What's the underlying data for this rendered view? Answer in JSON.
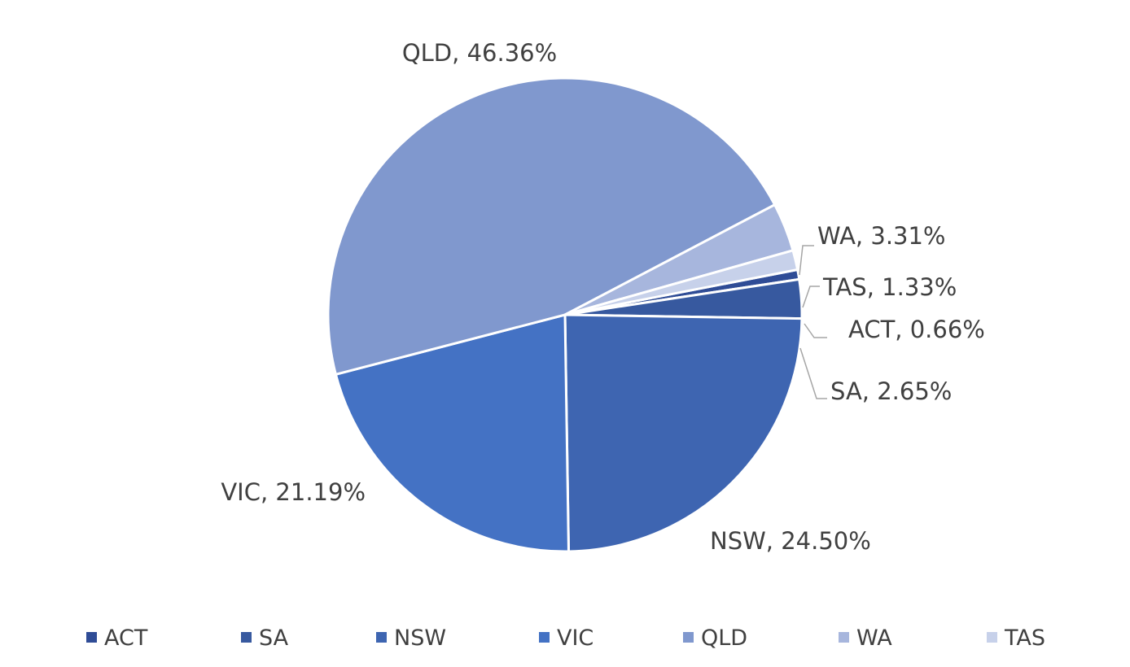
{
  "chart_data": {
    "type": "pie",
    "title": "",
    "slices": [
      {
        "name": "ACT",
        "value": 0.66,
        "label": "ACT, 0.66%",
        "color": "#2F4C96"
      },
      {
        "name": "SA",
        "value": 2.65,
        "label": "SA, 2.65%",
        "color": "#37599F"
      },
      {
        "name": "NSW",
        "value": 24.5,
        "label": "NSW, 24.50%",
        "color": "#3E65B1"
      },
      {
        "name": "VIC",
        "value": 21.19,
        "label": "VIC, 21.19%",
        "color": "#4472C4"
      },
      {
        "name": "QLD",
        "value": 46.36,
        "label": "QLD, 46.36%",
        "color": "#8098CE"
      },
      {
        "name": "WA",
        "value": 3.31,
        "label": "WA, 3.31%",
        "color": "#A7B6DD"
      },
      {
        "name": "TAS",
        "value": 1.33,
        "label": "TAS, 1.33%",
        "color": "#C7D1EA"
      }
    ],
    "legend": {
      "placement": "bottom",
      "entries": [
        "ACT",
        "SA",
        "NSW",
        "VIC",
        "QLD",
        "WA",
        "TAS"
      ]
    },
    "data_labels": "category, percentage"
  }
}
